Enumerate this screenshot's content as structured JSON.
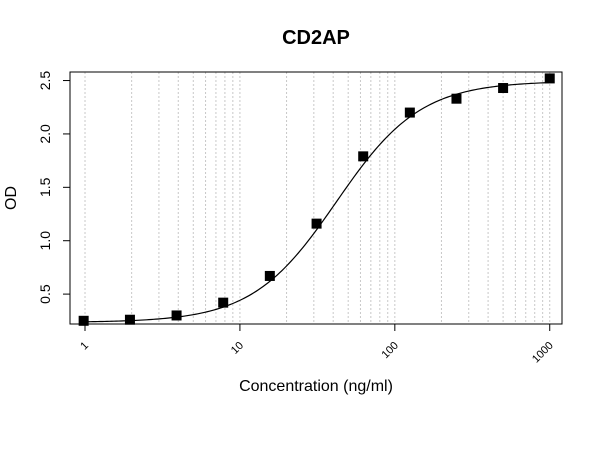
{
  "chart_data": {
    "type": "scatter",
    "title": "CD2AP",
    "xlabel": "Concentration (ng/ml)",
    "ylabel": "OD",
    "xscale": "log",
    "xlim": [
      0.8,
      1200
    ],
    "ylim": [
      0.22,
      2.58
    ],
    "xticks": [
      1,
      10,
      100,
      1000
    ],
    "xtick_labels": [
      "1",
      "10",
      "100",
      "1000"
    ],
    "yticks": [
      0.5,
      1.0,
      1.5,
      2.0,
      2.5
    ],
    "ytick_labels": [
      "0.5",
      "1.0",
      "1.5",
      "2.0",
      "2.5"
    ],
    "grid": "vertical dotted at each log minor tick",
    "series": [
      {
        "points": [
          {
            "x": 0.98,
            "y": 0.25
          },
          {
            "x": 1.95,
            "y": 0.26
          },
          {
            "x": 3.9,
            "y": 0.3
          },
          {
            "x": 7.8,
            "y": 0.42
          },
          {
            "x": 15.6,
            "y": 0.67
          },
          {
            "x": 31.25,
            "y": 1.16
          },
          {
            "x": 62.5,
            "y": 1.79
          },
          {
            "x": 125,
            "y": 2.2
          },
          {
            "x": 250,
            "y": 2.33
          },
          {
            "x": 500,
            "y": 2.43
          },
          {
            "x": 1000,
            "y": 2.52
          }
        ]
      }
    ],
    "fit_curve": {
      "model": "4PL",
      "bottom": 0.235,
      "top": 2.495,
      "ec50": 42,
      "hill": 1.6
    }
  }
}
